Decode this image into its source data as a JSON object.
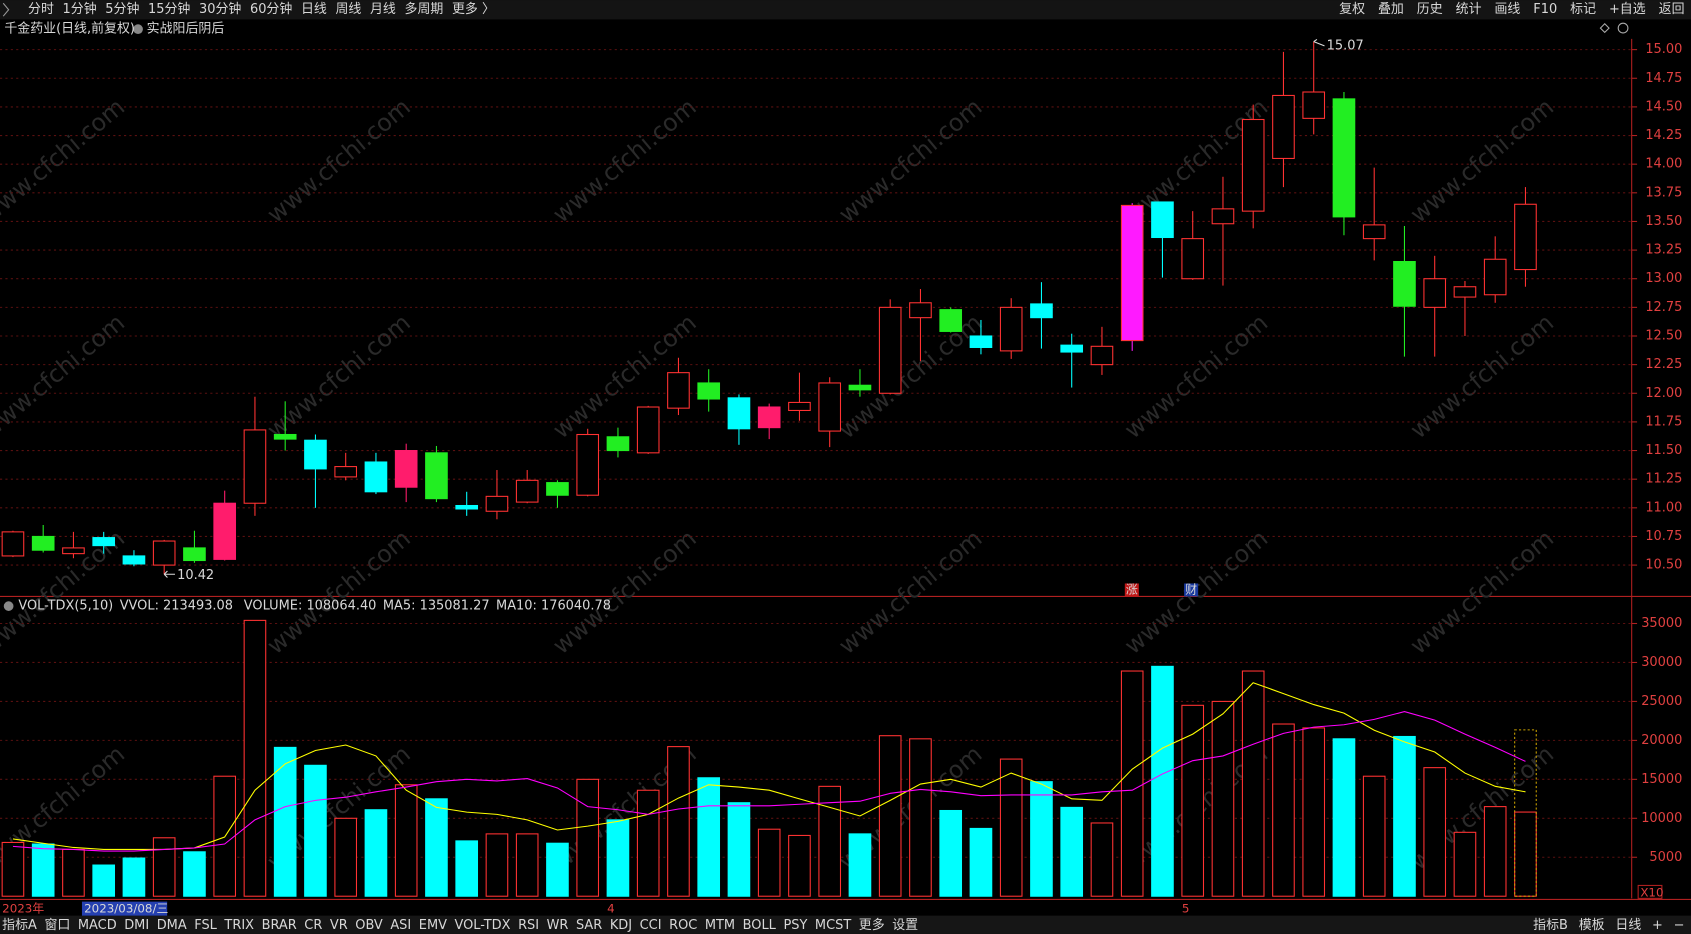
{
  "toolbar": {
    "left": [
      "分时",
      "1分钟",
      "5分钟",
      "15分钟",
      "30分钟",
      "60分钟",
      "日线",
      "周线",
      "月线",
      "多周期",
      "更多 〉"
    ],
    "selected": 6,
    "right": [
      "复权",
      "叠加",
      "历史",
      "统计",
      "画线",
      "F10",
      "标记",
      "+自选",
      "返回"
    ]
  },
  "watermark": "www.cfchi.com",
  "cursor_date": "2023/03/08/三",
  "bottom_tabs": {
    "left": [
      "指标A",
      "窗口",
      "MACD",
      "DMI",
      "DMA",
      "FSL",
      "TRIX",
      "BRAR",
      "CR",
      "VR",
      "OBV",
      "ASI",
      "EMV",
      "VOL-TDX",
      "RSI",
      "WR",
      "SAR",
      "KDJ",
      "CCI",
      "ROC",
      "MTM",
      "BOLL",
      "PSY",
      "MCST",
      "更多",
      "设置"
    ],
    "selected": 13,
    "right": [
      "指标B",
      "模板",
      "日线",
      "+",
      "−"
    ]
  },
  "chart_data": [
    {
      "type": "candlestick",
      "title": "千金药业(日线,前复权)",
      "indicator": "实战阳后阴后",
      "categories": [
        "2023年",
        null,
        null,
        null,
        null,
        null,
        null,
        null,
        null,
        null,
        null,
        null,
        null,
        null,
        null,
        null,
        null,
        null,
        null,
        null,
        "4",
        null,
        null,
        null,
        null,
        null,
        null,
        null,
        null,
        null,
        null,
        null,
        null,
        null,
        null,
        null,
        null,
        null,
        null,
        "5",
        null,
        null,
        null,
        null,
        null,
        null,
        null,
        null,
        null,
        null,
        null
      ],
      "open": [
        10.58,
        10.75,
        10.6,
        10.74,
        10.58,
        10.5,
        10.65,
        10.55,
        11.04,
        11.64,
        11.59,
        11.27,
        11.4,
        11.5,
        11.48,
        11.02,
        10.97,
        11.05,
        11.22,
        11.11,
        11.62,
        11.48,
        11.87,
        12.09,
        11.96,
        11.88,
        11.85,
        11.67,
        12.07,
        12.0,
        12.66,
        12.73,
        12.5,
        12.37,
        12.78,
        12.42,
        12.25,
        13.64,
        13.67,
        13.0,
        13.48,
        13.59,
        14.05,
        14.4,
        14.57,
        13.35,
        13.15,
        12.75,
        12.84,
        12.86,
        13.08
      ],
      "high": [
        10.8,
        10.85,
        10.79,
        10.79,
        10.63,
        10.72,
        10.8,
        11.15,
        11.97,
        11.93,
        11.64,
        11.48,
        11.48,
        11.56,
        11.54,
        11.14,
        11.33,
        11.33,
        11.24,
        11.69,
        11.7,
        11.89,
        12.31,
        12.21,
        11.99,
        11.91,
        12.18,
        12.14,
        12.21,
        12.82,
        12.91,
        12.75,
        12.64,
        12.83,
        12.97,
        12.52,
        12.58,
        13.66,
        13.67,
        13.59,
        13.89,
        14.52,
        14.98,
        15.07,
        14.63,
        13.97,
        13.46,
        13.2,
        12.98,
        13.37,
        13.8
      ],
      "low": [
        10.57,
        10.61,
        10.56,
        10.6,
        10.49,
        10.42,
        10.52,
        10.54,
        10.93,
        11.5,
        11.0,
        11.24,
        11.12,
        11.05,
        11.05,
        10.93,
        10.9,
        11.04,
        11.0,
        11.1,
        11.44,
        11.47,
        11.81,
        11.84,
        11.55,
        11.6,
        11.76,
        11.53,
        11.97,
        11.99,
        12.28,
        12.53,
        12.34,
        12.3,
        12.39,
        12.05,
        12.16,
        12.37,
        13.01,
        12.99,
        12.94,
        13.44,
        13.8,
        14.26,
        13.38,
        13.16,
        12.32,
        12.32,
        12.5,
        12.79,
        12.93
      ],
      "close": [
        10.79,
        10.63,
        10.65,
        10.67,
        10.51,
        10.71,
        10.54,
        11.04,
        11.68,
        11.6,
        11.34,
        11.36,
        11.14,
        11.18,
        11.08,
        10.99,
        11.1,
        11.24,
        11.11,
        11.64,
        11.5,
        11.88,
        12.18,
        11.95,
        11.69,
        11.7,
        11.92,
        12.09,
        12.03,
        12.75,
        12.79,
        12.54,
        12.4,
        12.75,
        12.66,
        12.36,
        12.41,
        12.46,
        13.36,
        13.35,
        13.61,
        14.39,
        14.6,
        14.63,
        13.54,
        13.47,
        12.76,
        13.0,
        12.93,
        13.17,
        13.65
      ],
      "colors": [
        "#ff3232",
        "#22ee22",
        "#ff3232",
        "#00ffff",
        "#00ffff",
        "#ff3232",
        "#22ee22",
        "#ff1c6c",
        "#ff3232",
        "#22ee22",
        "#00ffff",
        "#ff3232",
        "#00ffff",
        "#ff1c6c",
        "#22ee22",
        "#00ffff",
        "#ff3232",
        "#ff3232",
        "#22ee22",
        "#ff3232",
        "#22ee22",
        "#ff3232",
        "#ff3232",
        "#22ee22",
        "#00ffff",
        "#ff1c6c",
        "#ff3232",
        "#ff3232",
        "#22ee22",
        "#ff3232",
        "#ff3232",
        "#22ee22",
        "#00ffff",
        "#ff3232",
        "#00ffff",
        "#00ffff",
        "#ff3232",
        "#ff1aff",
        "#00ffff",
        "#ff3232",
        "#ff3232",
        "#ff3232",
        "#ff3232",
        "#ff3232",
        "#22ee22",
        "#ff3232",
        "#22ee22",
        "#ff3232",
        "#ff3232",
        "#ff3232",
        "#ff3232"
      ],
      "up_color": "#ff3232",
      "max_label": 15.07,
      "min_label": 10.42,
      "event_markers": [
        "涨",
        "财"
      ],
      "ylim": [
        10.236,
        15.094
      ],
      "yticks": [
        {
          "value": 10.5,
          "label": "10.50"
        },
        {
          "value": 10.75,
          "label": "10.75"
        },
        {
          "value": 11,
          "label": "11.00"
        },
        {
          "value": 11.25,
          "label": "11.25"
        },
        {
          "value": 11.5,
          "label": "11.50"
        },
        {
          "value": 11.75,
          "label": "11.75"
        },
        {
          "value": 12,
          "label": "12.00"
        },
        {
          "value": 12.25,
          "label": "12.25"
        },
        {
          "value": 12.5,
          "label": "12.50"
        },
        {
          "value": 12.75,
          "label": "12.75"
        },
        {
          "value": 13,
          "label": "13.00"
        },
        {
          "value": 13.25,
          "label": "13.25"
        },
        {
          "value": 13.5,
          "label": "13.50"
        },
        {
          "value": 13.75,
          "label": "13.75"
        },
        {
          "value": 14,
          "label": "14.00"
        },
        {
          "value": 14.25,
          "label": "14.25"
        },
        {
          "value": 14.5,
          "label": "14.50"
        },
        {
          "value": 14.75,
          "label": "14.75"
        },
        {
          "value": 15,
          "label": "15.00"
        }
      ],
      "grid": true
    },
    {
      "type": "bar",
      "title": "VOL-TDX(5,10)",
      "vvol_label": "VVOL: 213493.08",
      "vvol": 21349,
      "axis_multiplier": "X10",
      "up_color": "#ff3232",
      "bar_colors": [
        "#ff3232",
        "#00ffff",
        "#ff3232",
        "#00ffff",
        "#00ffff",
        "#ff3232",
        "#00ffff",
        "#ff3232",
        "#ff3232",
        "#00ffff",
        "#00ffff",
        "#ff3232",
        "#00ffff",
        "#ff3232",
        "#00ffff",
        "#00ffff",
        "#ff3232",
        "#ff3232",
        "#00ffff",
        "#ff3232",
        "#00ffff",
        "#ff3232",
        "#ff3232",
        "#00ffff",
        "#00ffff",
        "#ff3232",
        "#ff3232",
        "#ff3232",
        "#00ffff",
        "#ff3232",
        "#ff3232",
        "#00ffff",
        "#00ffff",
        "#ff3232",
        "#00ffff",
        "#00ffff",
        "#ff3232",
        "#ff3232",
        "#00ffff",
        "#ff3232",
        "#ff3232",
        "#ff3232",
        "#ff3232",
        "#ff3232",
        "#00ffff",
        "#ff3232",
        "#00ffff",
        "#ff3232",
        "#ff3232",
        "#ff3232",
        "#ff3232"
      ],
      "series": [
        {
          "name": "VOLUME: 108064.40",
          "color": "#ffff00",
          "type": "bar",
          "values": [
            6900,
            6700,
            6000,
            4000,
            4900,
            7500,
            5700,
            15400,
            35400,
            19100,
            16800,
            10000,
            11100,
            14300,
            12500,
            7100,
            8000,
            8000,
            6800,
            15000,
            9800,
            13600,
            19200,
            15200,
            12000,
            8600,
            7800,
            14100,
            8000,
            20600,
            20200,
            11000,
            8700,
            17600,
            14700,
            11400,
            9400,
            28900,
            29500,
            24500,
            25000,
            28900,
            22100,
            21600,
            20200,
            15400,
            20500,
            16500,
            8200,
            11500,
            10800
          ]
        },
        {
          "name": "MA5: 135081.27",
          "color": "#ffff00",
          "type": "line",
          "values": [
            7350,
            6800,
            6250,
            6000,
            6000,
            6000,
            6200,
            7600,
            13600,
            17000,
            18700,
            19400,
            18000,
            13600,
            11400,
            10800,
            10500,
            9800,
            8500,
            9000,
            9600,
            10500,
            12600,
            14300,
            14000,
            13600,
            12500,
            11400,
            10300,
            12300,
            14400,
            15000,
            14000,
            15800,
            14400,
            12500,
            12300,
            16300,
            19000,
            20800,
            23400,
            27400,
            26000,
            24600,
            23500,
            21300,
            19800,
            18500,
            15800,
            14100,
            13400
          ]
        },
        {
          "name": "MA10: 176040.78",
          "color": "#ff00ff",
          "type": "line",
          "values": [
            6400,
            6100,
            6000,
            5800,
            5800,
            6000,
            6200,
            6700,
            9800,
            11500,
            12300,
            12700,
            13400,
            14000,
            14700,
            15000,
            14800,
            15100,
            13900,
            11500,
            11100,
            10500,
            11200,
            11600,
            11600,
            11600,
            11800,
            12000,
            12200,
            13200,
            13700,
            13400,
            12900,
            13000,
            13000,
            13000,
            13400,
            13600,
            15700,
            17400,
            18000,
            19500,
            20900,
            21700,
            22000,
            22700,
            23700,
            22600,
            20800,
            19100,
            17300
          ]
        }
      ],
      "ylim": [
        0,
        36400
      ],
      "yticks": [
        5000,
        10000,
        15000,
        20000,
        25000,
        30000,
        35000
      ],
      "grid": true
    }
  ]
}
